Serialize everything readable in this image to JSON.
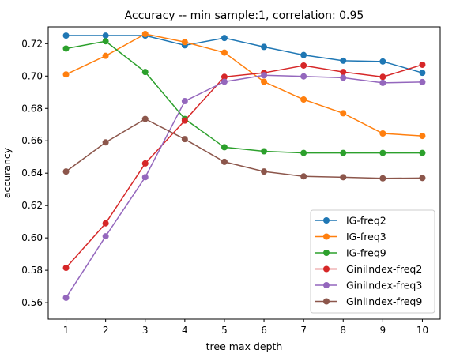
{
  "chart_data": {
    "type": "line",
    "title": "Accuracy -- min sample:1, correlation: 0.95",
    "xlabel": "tree max depth",
    "ylabel": "accurancy",
    "x": [
      1,
      2,
      3,
      4,
      5,
      6,
      7,
      8,
      9,
      10
    ],
    "xlim": [
      0.55,
      10.45
    ],
    "ylim": [
      0.5498,
      0.7304
    ],
    "yticks": [
      0.56,
      0.58,
      0.6,
      0.62,
      0.64,
      0.66,
      0.68,
      0.7,
      0.72
    ],
    "ytick_labels": [
      "0.56",
      "0.58",
      "0.60",
      "0.62",
      "0.64",
      "0.66",
      "0.68",
      "0.70",
      "0.72"
    ],
    "grid": false,
    "legend_position": "lower right",
    "series": [
      {
        "name": "IG-freq2",
        "color": "#1f77b4",
        "values": [
          0.725,
          0.725,
          0.725,
          0.719,
          0.7235,
          0.718,
          0.713,
          0.7095,
          0.709,
          0.702
        ]
      },
      {
        "name": "IG-freq3",
        "color": "#ff7f0e",
        "values": [
          0.701,
          0.7125,
          0.726,
          0.721,
          0.7145,
          0.6965,
          0.6855,
          0.677,
          0.6645,
          0.663
        ]
      },
      {
        "name": "IG-freq9",
        "color": "#2ca02c",
        "values": [
          0.717,
          0.7215,
          0.7025,
          0.6735,
          0.656,
          0.6535,
          0.6525,
          0.6525,
          0.6525,
          0.6525
        ]
      },
      {
        "name": "GiniIndex-freq2",
        "color": "#d62728",
        "values": [
          0.5815,
          0.609,
          0.646,
          0.6725,
          0.6995,
          0.702,
          0.7065,
          0.7025,
          0.6995,
          0.707
        ]
      },
      {
        "name": "GiniIndex-freq3",
        "color": "#9467bd",
        "values": [
          0.563,
          0.601,
          0.6375,
          0.6845,
          0.6965,
          0.7005,
          0.6998,
          0.699,
          0.6958,
          0.6963
        ]
      },
      {
        "name": "GiniIndex-freq9",
        "color": "#8c564b",
        "values": [
          0.641,
          0.659,
          0.6735,
          0.661,
          0.647,
          0.641,
          0.638,
          0.6375,
          0.6368,
          0.637
        ]
      }
    ]
  }
}
